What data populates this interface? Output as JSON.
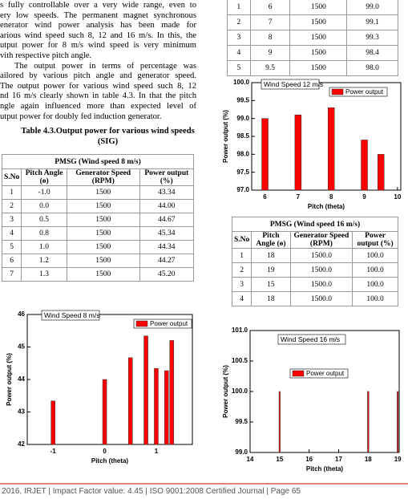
{
  "paragraph": [
    "s fully controllable over a very wide range, even to",
    "ery low speeds. The permanent magnet synchronous",
    "enerator wind power analysis has been made for",
    "arious wind speed such 8, 12 and 16 m/s. In this, the",
    "utput power for 8 m/s wind speed is very minimum",
    "vith respective pitch angle.",
    "The output power in terms of percentage was",
    "ailored by various pitch angle and generator speed.",
    "The output power for various wind speed such 8, 12",
    "nd 16 m/s clearly shown in table 4.3. In that the pitch",
    "ngle again influenced more than expected level of",
    "utput power for doubly fed induction generator."
  ],
  "table_caption": "Table 4.3.Output power for various wind speeds (SIG)",
  "table_12": {
    "rows": [
      [
        "1",
        "6",
        "1500",
        "99.0"
      ],
      [
        "2",
        "7",
        "1500",
        "99.1"
      ],
      [
        "3",
        "8",
        "1500",
        "99.3"
      ],
      [
        "4",
        "9",
        "1500",
        "98.4"
      ],
      [
        "5",
        "9.5",
        "1500",
        "98.0"
      ]
    ]
  },
  "table_8": {
    "title": "PMSG (Wind speed 8 m/s)",
    "header": [
      "S.No",
      "Pitch Angle (ɵ)",
      "Generator Speed (RPM)",
      "Power output (%)"
    ],
    "rows": [
      [
        "1",
        "-1.0",
        "1500",
        "43.34"
      ],
      [
        "2",
        "0.0",
        "1500",
        "44.00"
      ],
      [
        "3",
        "0.5",
        "1500",
        "44.67"
      ],
      [
        "4",
        "0.8",
        "1500",
        "45.34"
      ],
      [
        "5",
        "1.0",
        "1500",
        "44.34"
      ],
      [
        "6",
        "1.2",
        "1500",
        "44.27"
      ],
      [
        "7",
        "1.3",
        "1500",
        "45.20"
      ]
    ]
  },
  "table_16": {
    "title": "PMSG (Wind speed 16 m/s)",
    "header": [
      "S.No",
      "Pitch Angle (ɵ)",
      "Generator Speed (RPM)",
      "Power output (%)"
    ],
    "rows": [
      [
        "1",
        "18",
        "1500.0",
        "100.0"
      ],
      [
        "2",
        "19",
        "1500.0",
        "100.0"
      ],
      [
        "3",
        "15",
        "1500.0",
        "100.0"
      ],
      [
        "4",
        "18",
        "1500.0",
        "100.0"
      ]
    ]
  },
  "footer": "© 2016, IRJET | Impact Factor value: 4.45 | ISO 9001:2008 Certified Journal | Page 65",
  "chart_data": [
    {
      "type": "bar",
      "title": "Wind Speed 8 m/s",
      "x_label": "Pitch (theta)",
      "y_label": "Power output (%)",
      "x": [
        -1,
        0,
        0.5,
        0.8,
        1,
        1.2,
        1.3
      ],
      "series": [
        {
          "name": "Power output",
          "color": "#ff0000",
          "values": [
            43.34,
            44,
            44.67,
            45.34,
            44.34,
            44.27,
            45.2
          ]
        }
      ],
      "xlim": [
        -1.5,
        1.7
      ],
      "xticks": [
        -1,
        0,
        1
      ],
      "ylim": [
        42,
        46
      ],
      "yticks": [
        42,
        43,
        44,
        45,
        46
      ]
    },
    {
      "type": "bar",
      "title": "Wind Speed 12 m/s",
      "x_label": "Pitch (theta)",
      "y_label": "Power output (%)",
      "x": [
        6,
        7,
        8,
        9,
        9.5
      ],
      "series": [
        {
          "name": "Power output",
          "color": "#ff0000",
          "values": [
            99,
            99.1,
            99.3,
            98.4,
            98
          ]
        }
      ],
      "xlim": [
        5.6,
        10.1
      ],
      "xticks": [
        6,
        7,
        8,
        9,
        10
      ],
      "ylim": [
        97,
        100
      ],
      "yticks": [
        {
          "value": 97,
          "label": "97.0"
        },
        {
          "value": 97.5,
          "label": "97.5"
        },
        {
          "value": 98,
          "label": "98.0"
        },
        {
          "value": 98.5,
          "label": "98.5"
        },
        {
          "value": 99,
          "label": "99.0"
        },
        {
          "value": 99.5,
          "label": "99.5"
        },
        {
          "value": 100,
          "label": "100.0"
        }
      ]
    },
    {
      "type": "bar",
      "title": "Wind Speed 16 m/s",
      "x_label": "Pitch (theta)",
      "y_label": "Power output (%)",
      "x": [
        18,
        19,
        15,
        18
      ],
      "series": [
        {
          "name": "Power output",
          "color": "#ff0000",
          "values": [
            100,
            100,
            100,
            100
          ]
        }
      ],
      "xlim": [
        14,
        19.05
      ],
      "xticks": [
        14,
        15,
        16,
        17,
        18,
        19
      ],
      "ylim": [
        99,
        101
      ],
      "yticks": [
        {
          "value": 99,
          "label": "99.0"
        },
        {
          "value": 99.5,
          "label": "99.5"
        },
        {
          "value": 100,
          "label": "100.0"
        },
        {
          "value": 100.5,
          "label": "100.5"
        },
        {
          "value": 101,
          "label": "101.0"
        }
      ]
    }
  ]
}
